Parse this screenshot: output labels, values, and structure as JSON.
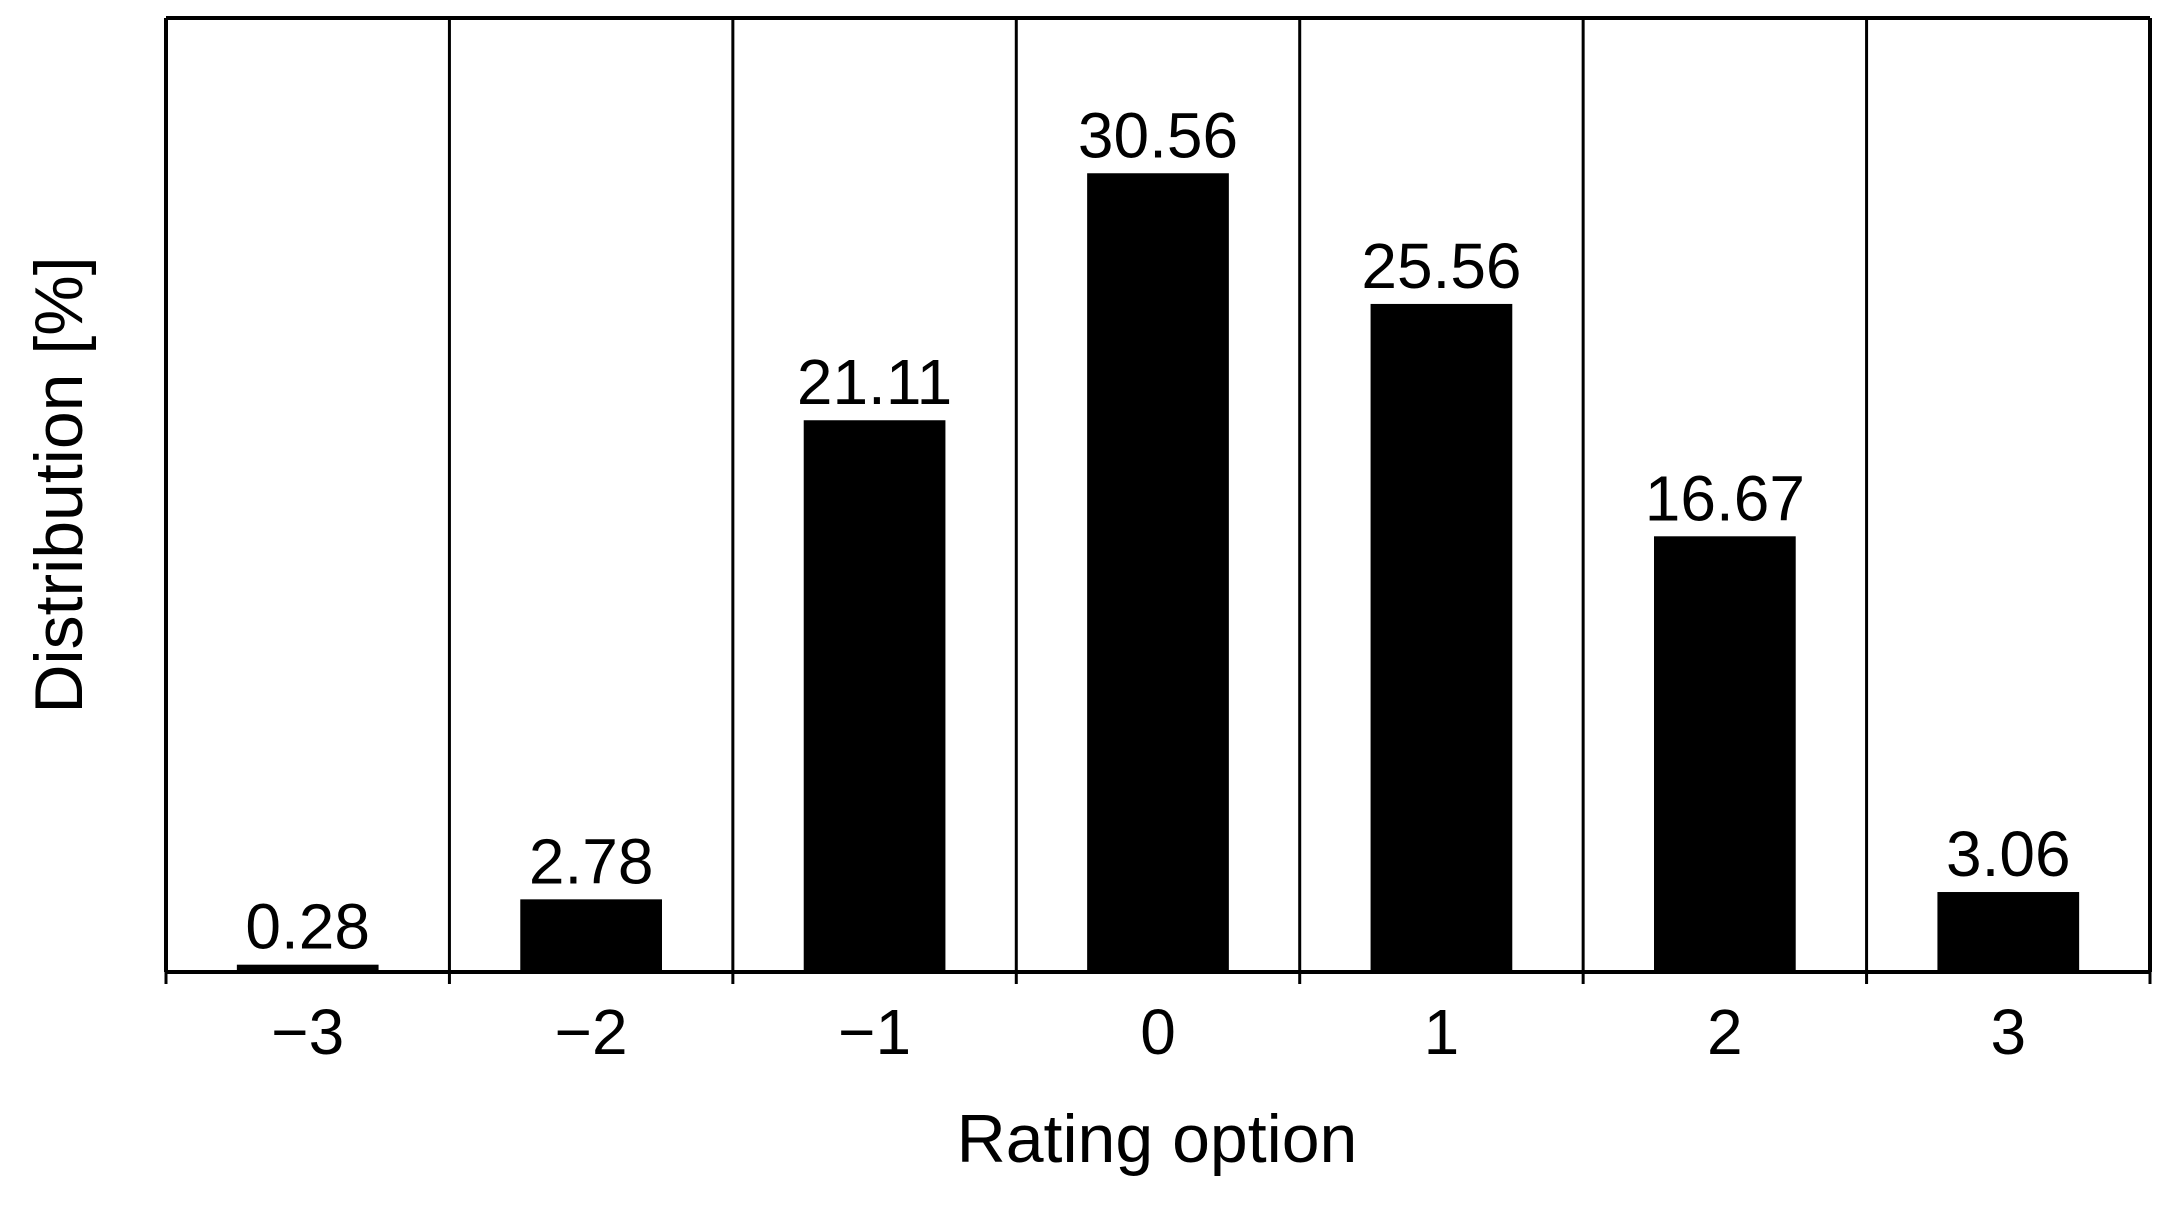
{
  "colors": {
    "bar": "#000000",
    "axis": "#000000",
    "background": "#ffffff"
  },
  "chart_data": {
    "type": "bar",
    "title": "",
    "xlabel": "Rating option",
    "ylabel": "Distribution [%]",
    "categories": [
      "−3",
      "−2",
      "−1",
      "0",
      "1",
      "2",
      "3"
    ],
    "values": [
      0.28,
      2.78,
      21.11,
      30.56,
      25.56,
      16.67,
      3.06
    ],
    "value_labels": [
      "0.28",
      "2.78",
      "21.11",
      "30.56",
      "25.56",
      "16.67",
      "3.06"
    ],
    "ylim": [
      0,
      36.5
    ],
    "grid": "vertical separators between categories",
    "legend": "none"
  }
}
